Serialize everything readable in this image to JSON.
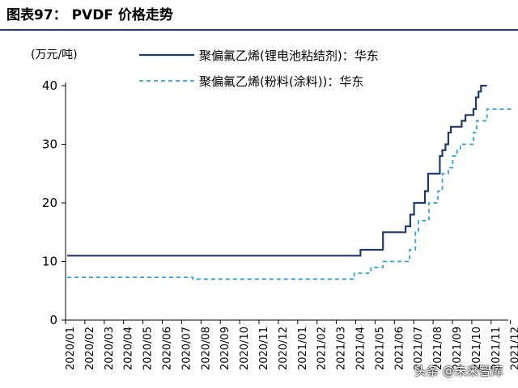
{
  "header": {
    "title": "图表97： PVDF 价格走势"
  },
  "watermark": "头条 @未来智库",
  "chart_data": {
    "type": "line",
    "ylabel": "(万元/吨)",
    "ylim": [
      0,
      40
    ],
    "yticks": [
      0,
      10,
      20,
      30,
      40
    ],
    "grid": false,
    "legend_placement": "top-right",
    "categories": [
      "2020/01",
      "2020/02",
      "2020/03",
      "2020/04",
      "2020/05",
      "2020/06",
      "2020/07",
      "2020/08",
      "2020/09",
      "2020/10",
      "2020/11",
      "2020/12",
      "2021/01",
      "2021/02",
      "2021/03",
      "2021/04",
      "2021/05",
      "2021/06",
      "2021/07",
      "2021/08",
      "2021/09",
      "2021/10",
      "2021/11",
      "2021/12"
    ],
    "x_start": "2020/01/10",
    "series": [
      {
        "name": "聚偏氟乙烯(锂电池粘结剂)：华东",
        "color": "#1f3a6e",
        "style": "solid",
        "points": [
          [
            "2020/01/10",
            11
          ],
          [
            "2021/04/15",
            11
          ],
          [
            "2021/04/15",
            12
          ],
          [
            "2021/05/20",
            12
          ],
          [
            "2021/05/20",
            15
          ],
          [
            "2021/06/25",
            15
          ],
          [
            "2021/06/25",
            16
          ],
          [
            "2021/07/02",
            16
          ],
          [
            "2021/07/02",
            18
          ],
          [
            "2021/07/08",
            18
          ],
          [
            "2021/07/08",
            20
          ],
          [
            "2021/07/25",
            20
          ],
          [
            "2021/07/25",
            22
          ],
          [
            "2021/07/30",
            22
          ],
          [
            "2021/07/30",
            25
          ],
          [
            "2021/08/18",
            25
          ],
          [
            "2021/08/18",
            28
          ],
          [
            "2021/08/22",
            28
          ],
          [
            "2021/08/22",
            29
          ],
          [
            "2021/08/27",
            29
          ],
          [
            "2021/08/27",
            30
          ],
          [
            "2021/09/01",
            30
          ],
          [
            "2021/09/01",
            32
          ],
          [
            "2021/09/05",
            32
          ],
          [
            "2021/09/05",
            33
          ],
          [
            "2021/09/22",
            33
          ],
          [
            "2021/09/22",
            34
          ],
          [
            "2021/09/28",
            34
          ],
          [
            "2021/09/28",
            35
          ],
          [
            "2021/10/10",
            35
          ],
          [
            "2021/10/10",
            36
          ],
          [
            "2021/10/14",
            36
          ],
          [
            "2021/10/14",
            38
          ],
          [
            "2021/10/18",
            38
          ],
          [
            "2021/10/18",
            39
          ],
          [
            "2021/10/22",
            39
          ],
          [
            "2021/10/22",
            40
          ],
          [
            "2021/11/01",
            40
          ]
        ]
      },
      {
        "name": "聚偏氟乙烯(粉料(涂料))：华东",
        "color": "#2ea3dd",
        "style": "dashed",
        "points": [
          [
            "2020/01/10",
            7.3
          ],
          [
            "2020/07/25",
            7.3
          ],
          [
            "2020/07/25",
            7.0
          ],
          [
            "2021/04/05",
            7.0
          ],
          [
            "2021/04/05",
            8.0
          ],
          [
            "2021/05/01",
            8.0
          ],
          [
            "2021/05/01",
            9.0
          ],
          [
            "2021/05/20",
            9.0
          ],
          [
            "2021/05/20",
            10.0
          ],
          [
            "2021/07/01",
            10.0
          ],
          [
            "2021/07/01",
            12.0
          ],
          [
            "2021/07/10",
            12.0
          ],
          [
            "2021/07/10",
            15.0
          ],
          [
            "2021/07/15",
            15.0
          ],
          [
            "2021/07/15",
            17.0
          ],
          [
            "2021/08/01",
            17.0
          ],
          [
            "2021/08/01",
            20.0
          ],
          [
            "2021/08/15",
            20.0
          ],
          [
            "2021/08/15",
            22.0
          ],
          [
            "2021/08/22",
            22.0
          ],
          [
            "2021/08/22",
            25.0
          ],
          [
            "2021/09/01",
            25.0
          ],
          [
            "2021/09/01",
            26.0
          ],
          [
            "2021/09/08",
            26.0
          ],
          [
            "2021/09/08",
            28.0
          ],
          [
            "2021/09/15",
            28.0
          ],
          [
            "2021/09/15",
            29.0
          ],
          [
            "2021/09/20",
            29.0
          ],
          [
            "2021/09/20",
            30.0
          ],
          [
            "2021/10/10",
            30.0
          ],
          [
            "2021/10/10",
            32.0
          ],
          [
            "2021/10/15",
            32.0
          ],
          [
            "2021/10/15",
            34.0
          ],
          [
            "2021/11/01",
            34.0
          ],
          [
            "2021/11/01",
            36.0
          ],
          [
            "2021/12/10",
            36.0
          ]
        ]
      }
    ]
  }
}
